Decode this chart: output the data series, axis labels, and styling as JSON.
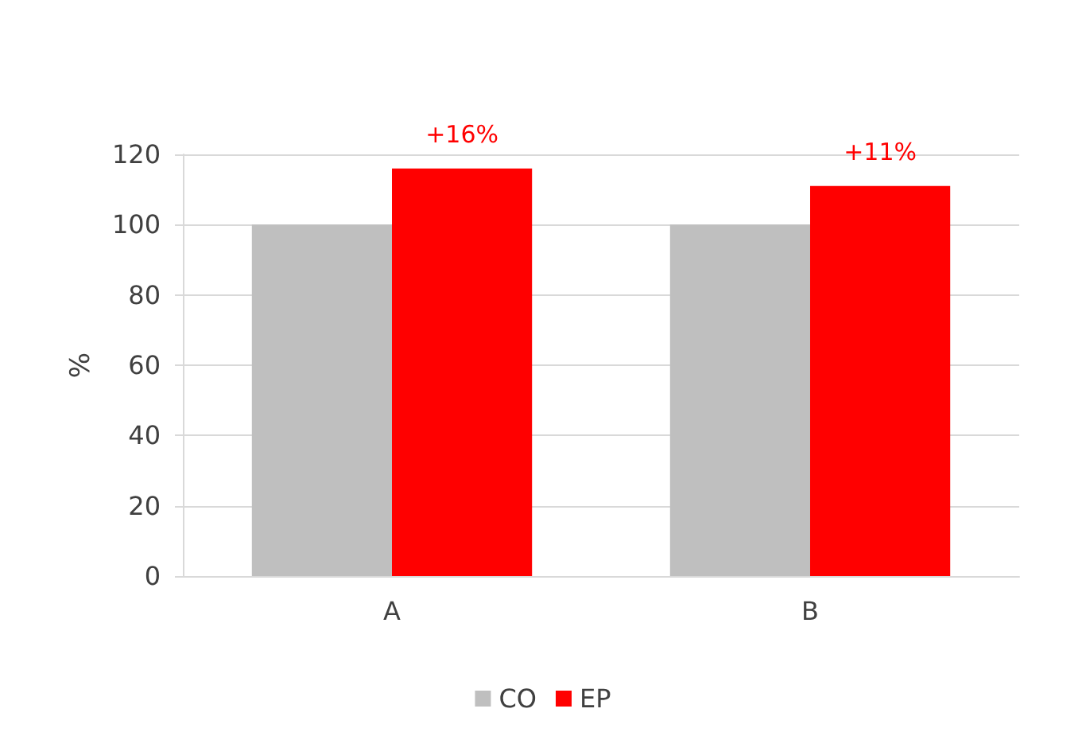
{
  "chart_data": {
    "type": "bar",
    "ylabel": "%",
    "categories": [
      "A",
      "B"
    ],
    "series": [
      {
        "name": "CO",
        "color": "#bfbfbf",
        "values": [
          100,
          100
        ]
      },
      {
        "name": "EP",
        "color": "#ff0000",
        "values": [
          116,
          111
        ]
      }
    ],
    "ylim": [
      0,
      120
    ],
    "yticks": [
      0,
      20,
      40,
      60,
      80,
      100,
      120
    ],
    "grid": "y",
    "legend": "bottom",
    "annotations": [
      {
        "text": "+16%",
        "x": "A",
        "y": 116
      },
      {
        "text": "+11%",
        "x": "B",
        "y": 111
      }
    ]
  }
}
